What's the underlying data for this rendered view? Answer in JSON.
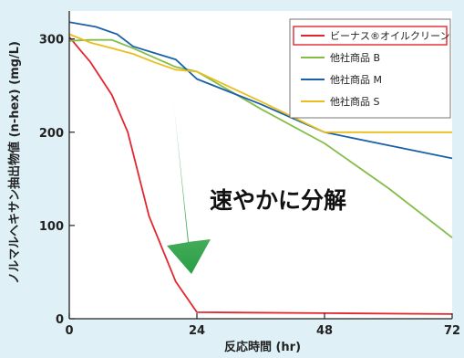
{
  "chart_data": {
    "type": "line",
    "title": "",
    "xlabel": "反応時間 (hr)",
    "ylabel": "ノルマルヘキサン抽出物値 (n-hex) (mg/L)",
    "xlim": [
      0,
      72
    ],
    "ylim": [
      0,
      330
    ],
    "xticks": [
      0,
      24,
      48,
      72
    ],
    "yticks": [
      0,
      100,
      200,
      300
    ],
    "x_tick_labels": [
      "0",
      "24",
      "48",
      "72"
    ],
    "y_tick_labels": [
      "0",
      "100",
      "200",
      "300"
    ],
    "grid": false,
    "legend_position": "top-right",
    "annotation": "速やかに分解",
    "series": [
      {
        "name": "ビーナス®オイルクリーン",
        "color": "#e3262d",
        "highlight": true,
        "x": [
          0,
          4,
          8,
          11,
          15,
          20,
          24,
          48,
          72
        ],
        "y": [
          302,
          275,
          240,
          200,
          110,
          40,
          7,
          6,
          5
        ]
      },
      {
        "name": "他社商品 B",
        "color": "#85bd4a",
        "x": [
          0,
          4,
          8,
          12,
          16,
          20,
          24,
          36,
          48,
          60,
          72
        ],
        "y": [
          298,
          299,
          299,
          290,
          280,
          270,
          265,
          225,
          188,
          140,
          87
        ]
      },
      {
        "name": "他社商品 M",
        "color": "#1a61a8",
        "x": [
          0,
          5,
          9,
          12,
          16,
          20,
          24,
          36,
          48,
          60,
          72
        ],
        "y": [
          318,
          313,
          305,
          292,
          285,
          278,
          257,
          230,
          200,
          186,
          172
        ]
      },
      {
        "name": "他社商品 S",
        "color": "#e9be1e",
        "x": [
          0,
          4,
          8,
          12,
          16,
          20,
          24,
          36,
          48,
          60,
          72
        ],
        "y": [
          305,
          296,
          290,
          284,
          275,
          267,
          265,
          233,
          200,
          200,
          200
        ]
      }
    ]
  }
}
